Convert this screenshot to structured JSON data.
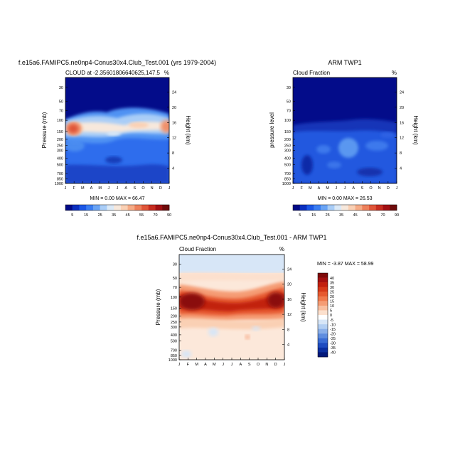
{
  "panels": {
    "model": {
      "title": "f.e15a6.FAMIPC5.ne0np4-Conus30x4.Club_Test.001 (yrs 1979-2004)",
      "subtitle_left": "CLOUD at -2.35601806640625,147.5",
      "subtitle_right": "%",
      "ylabel": "Pressure (mb)",
      "y2label": "Height (km)",
      "minmax": "MIN =  0.00 MAX =  66.47"
    },
    "obs": {
      "title": "ARM TWP1",
      "subtitle_left": "Cloud Fraction",
      "subtitle_right": "%",
      "ylabel": "pressure level",
      "y2label": "Height (km)",
      "minmax": "MIN =  0.00 MAX =  26.53"
    },
    "diff": {
      "title": "f.e15a6.FAMIPC5.ne0np4-Conus30x4.Club_Test.001 - ARM TWP1",
      "subtitle_left": "Cloud Fraction",
      "subtitle_right": "%",
      "ylabel": "Pressure (mb)",
      "y2label": "Height (km)",
      "minmax": "MIN = -3.87 MAX = 58.99"
    }
  },
  "chart_data": [
    {
      "type": "heatmap",
      "panel": "model",
      "x_categories": [
        "J",
        "F",
        "M",
        "A",
        "M",
        "J",
        "J",
        "A",
        "S",
        "O",
        "N",
        "D",
        "J"
      ],
      "y_pressure_ticks": [
        30,
        50,
        70,
        100,
        150,
        200,
        250,
        300,
        400,
        500,
        700,
        850,
        1000
      ],
      "y_height_ticks": [
        24,
        20,
        16,
        12,
        8,
        4
      ],
      "colorbar_labels": [
        "5",
        "15",
        "25",
        "35",
        "45",
        "55",
        "70",
        "90"
      ],
      "colorbar_colors": [
        "#020a87",
        "#0a2fbf",
        "#1b57e6",
        "#3a7df2",
        "#6aa4f5",
        "#a9cdf7",
        "#dbe9f7",
        "#f7e8dc",
        "#fad0b4",
        "#f6ab86",
        "#ee805b",
        "#e05538",
        "#c72c1f",
        "#a10f12",
        "#6f0b0b"
      ],
      "peak_max": 66.47,
      "notes": "high cloud maximum near 100-150 mb, strongest in Jan-Feb and Nov-Dec"
    },
    {
      "type": "heatmap",
      "panel": "obs",
      "x_categories": [
        "J",
        "F",
        "M",
        "A",
        "M",
        "J",
        "J",
        "A",
        "S",
        "O",
        "N",
        "D",
        "J"
      ],
      "y_pressure_ticks": [
        30,
        50,
        70,
        100,
        150,
        200,
        250,
        300,
        400,
        500,
        700,
        850,
        1000
      ],
      "y_height_ticks": [
        24,
        20,
        16,
        12,
        8,
        4
      ],
      "colorbar_labels": [
        "5",
        "15",
        "25",
        "35",
        "45",
        "55",
        "70",
        "90"
      ],
      "colorbar_colors": [
        "#020a87",
        "#0a2fbf",
        "#1b57e6",
        "#3a7df2",
        "#6aa4f5",
        "#a9cdf7",
        "#dbe9f7",
        "#f7e8dc",
        "#fad0b4",
        "#f6ab86",
        "#ee805b",
        "#e05538",
        "#c72c1f",
        "#a10f12",
        "#6f0b0b"
      ],
      "peak_max": 26.53
    },
    {
      "type": "heatmap",
      "panel": "diff",
      "x_categories": [
        "J",
        "F",
        "M",
        "A",
        "M",
        "J",
        "J",
        "A",
        "S",
        "O",
        "N",
        "D",
        "J"
      ],
      "y_pressure_ticks": [
        30,
        50,
        70,
        100,
        150,
        200,
        250,
        300,
        400,
        500,
        700,
        850,
        1000
      ],
      "y_height_ticks": [
        24,
        20,
        16,
        12,
        8,
        4
      ],
      "colorbar_labels": [
        "40",
        "35",
        "30",
        "25",
        "20",
        "15",
        "10",
        "5",
        "0",
        "-5",
        "-10",
        "-15",
        "-20",
        "-25",
        "-30",
        "-35",
        "-40"
      ],
      "colorbar_colors": [
        "#7e0a0a",
        "#a31010",
        "#c2200f",
        "#d63a1a",
        "#e65a30",
        "#f07b4e",
        "#f59c74",
        "#f9bfa0",
        "#fce0cd",
        "#ffffff",
        "#d7e6f7",
        "#b2cef2",
        "#8aafe9",
        "#5f8ddf",
        "#3a6cd4",
        "#1f4cc0",
        "#0b2fa0",
        "#03197a"
      ],
      "peak_max": 58.99,
      "peak_min": -3.87
    }
  ]
}
